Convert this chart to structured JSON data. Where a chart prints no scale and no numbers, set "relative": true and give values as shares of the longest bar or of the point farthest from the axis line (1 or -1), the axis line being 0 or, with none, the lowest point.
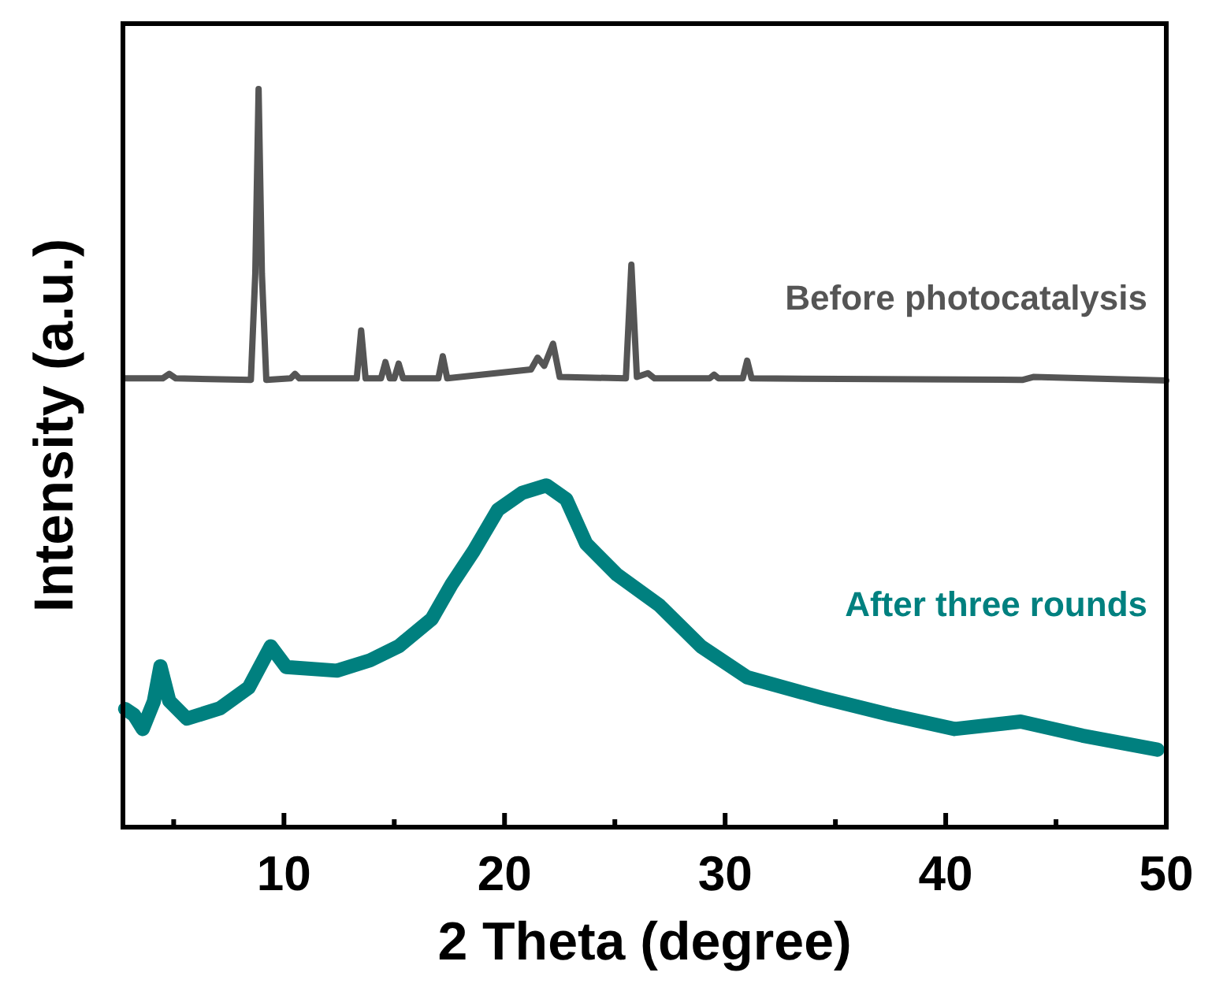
{
  "chart_data": {
    "type": "line",
    "relative": true,
    "xlabel": "2 Theta (degree)",
    "ylabel": "Intensity (a.u.)",
    "xlim": [
      2.7,
      50
    ],
    "xticks": [
      {
        "value": 5,
        "label": null
      },
      10,
      {
        "value": 15,
        "label": null
      },
      20,
      {
        "value": 25,
        "label": null
      },
      30,
      {
        "value": 35,
        "label": null
      },
      40,
      {
        "value": 45,
        "label": null
      },
      50
    ],
    "series": [
      {
        "name": "Before photocatalysis",
        "color": "#555555",
        "x": [
          2.8,
          4.5,
          4.8,
          5.1,
          8.5,
          8.7,
          8.85,
          9.0,
          9.2,
          10.3,
          10.5,
          10.7,
          13.3,
          13.5,
          13.7,
          14.4,
          14.6,
          14.8,
          15.0,
          15.2,
          15.4,
          17.0,
          17.2,
          17.4,
          21.2,
          21.5,
          21.8,
          22.2,
          22.5,
          25.5,
          25.75,
          26.0,
          26.5,
          26.8,
          29.3,
          29.5,
          29.7,
          30.8,
          31.0,
          31.2,
          43.5,
          44,
          50
        ],
        "values": [
          0.608,
          0.608,
          0.614,
          0.608,
          0.606,
          0.75,
          1.0,
          0.75,
          0.606,
          0.608,
          0.614,
          0.608,
          0.608,
          0.673,
          0.608,
          0.608,
          0.63,
          0.608,
          0.608,
          0.628,
          0.608,
          0.608,
          0.638,
          0.608,
          0.62,
          0.636,
          0.625,
          0.655,
          0.61,
          0.608,
          0.762,
          0.61,
          0.615,
          0.608,
          0.608,
          0.613,
          0.608,
          0.608,
          0.632,
          0.608,
          0.606,
          0.61,
          0.605
        ]
      },
      {
        "name": "After three rounds",
        "color": "#00807f",
        "x": [
          2.8,
          3.2,
          3.6,
          4.1,
          4.4,
          4.8,
          5.6,
          7.1,
          8.4,
          9.4,
          10.1,
          12.4,
          13.9,
          15.2,
          16.7,
          17.6,
          18.6,
          19.7,
          20.8,
          21.9,
          22.8,
          23.7,
          25.1,
          27,
          28.9,
          31,
          34.4,
          37.5,
          40.4,
          43.4,
          46.2,
          49.6
        ],
        "values": [
          0.16,
          0.152,
          0.133,
          0.17,
          0.218,
          0.171,
          0.147,
          0.161,
          0.189,
          0.245,
          0.217,
          0.212,
          0.226,
          0.245,
          0.282,
          0.329,
          0.374,
          0.43,
          0.453,
          0.463,
          0.444,
          0.384,
          0.342,
          0.301,
          0.245,
          0.203,
          0.175,
          0.152,
          0.133,
          0.143,
          0.124,
          0.105
        ]
      }
    ]
  }
}
